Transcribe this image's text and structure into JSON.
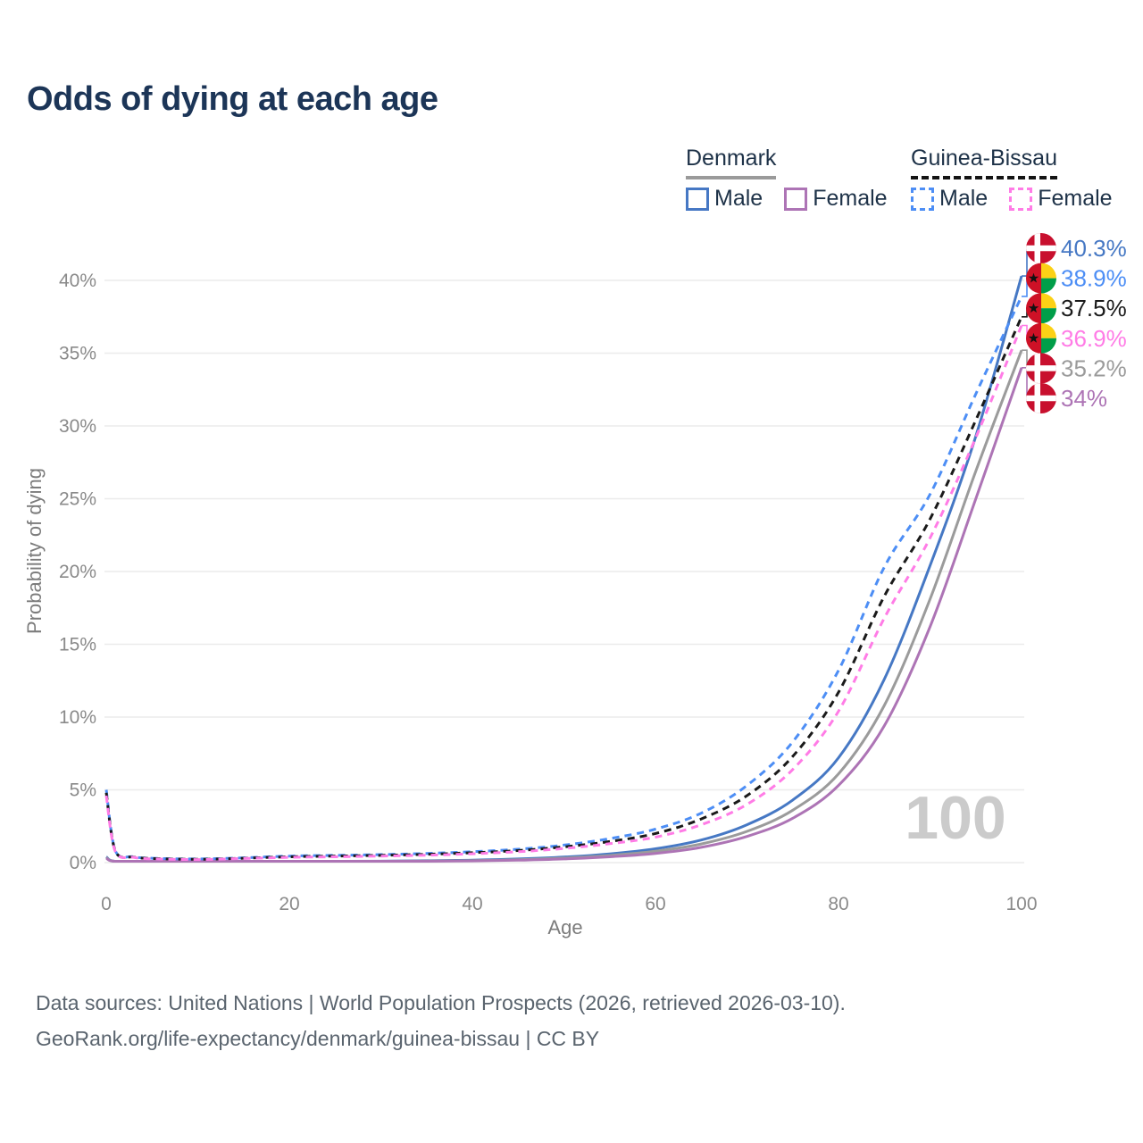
{
  "title": "Odds of dying at each age",
  "legend": {
    "groups": [
      {
        "name": "Denmark",
        "line_style": "solid",
        "underline_color": "#9a9a9a",
        "items": [
          {
            "label": "Male",
            "color": "#4678c4"
          },
          {
            "label": "Female",
            "color": "#ad74b5"
          }
        ]
      },
      {
        "name": "Guinea-Bissau",
        "line_style": "dashed",
        "underline_color": "#141414",
        "items": [
          {
            "label": "Male",
            "color": "#4d8ef5"
          },
          {
            "label": "Female",
            "color": "#ff7ce6"
          }
        ]
      }
    ]
  },
  "chart_data": {
    "type": "line",
    "title": "Odds of dying at each age",
    "xlabel": "Age",
    "ylabel": "Probability of dying",
    "x_ticks": [
      0,
      20,
      40,
      60,
      80,
      100
    ],
    "y_tick_labels": [
      "0%",
      "5%",
      "10%",
      "15%",
      "20%",
      "25%",
      "30%",
      "35%",
      "40%"
    ],
    "xlim": [
      0,
      100
    ],
    "ylim": [
      0,
      43
    ],
    "grid": "horizontal",
    "legend_position": "top-right",
    "watermark": "100",
    "series": [
      {
        "id": "denmark-male",
        "name": "Denmark Male",
        "color": "#4678c4",
        "dashed": false,
        "flag": "denmark",
        "end_label": "40.3%",
        "end_value": 40.3,
        "points": [
          [
            0,
            0.4
          ],
          [
            1,
            0.04
          ],
          [
            5,
            0.01
          ],
          [
            10,
            0.012
          ],
          [
            15,
            0.03
          ],
          [
            20,
            0.06
          ],
          [
            25,
            0.08
          ],
          [
            30,
            0.1
          ],
          [
            35,
            0.13
          ],
          [
            40,
            0.17
          ],
          [
            45,
            0.25
          ],
          [
            50,
            0.38
          ],
          [
            55,
            0.6
          ],
          [
            60,
            0.95
          ],
          [
            65,
            1.55
          ],
          [
            70,
            2.6
          ],
          [
            75,
            4.3
          ],
          [
            80,
            7.2
          ],
          [
            85,
            12.6
          ],
          [
            90,
            20.4
          ],
          [
            95,
            29.3
          ],
          [
            100,
            40.3
          ]
        ]
      },
      {
        "id": "denmark-both",
        "name": "Denmark",
        "color": "#9b9b9b",
        "dashed": false,
        "flag": "denmark",
        "end_label": "35.2%",
        "end_value": 35.2,
        "points": [
          [
            0,
            0.35
          ],
          [
            1,
            0.035
          ],
          [
            5,
            0.01
          ],
          [
            10,
            0.01
          ],
          [
            15,
            0.025
          ],
          [
            20,
            0.05
          ],
          [
            25,
            0.065
          ],
          [
            30,
            0.08
          ],
          [
            35,
            0.105
          ],
          [
            40,
            0.14
          ],
          [
            45,
            0.2
          ],
          [
            50,
            0.31
          ],
          [
            55,
            0.49
          ],
          [
            60,
            0.78
          ],
          [
            65,
            1.28
          ],
          [
            70,
            2.15
          ],
          [
            75,
            3.6
          ],
          [
            80,
            6.1
          ],
          [
            85,
            10.8
          ],
          [
            90,
            18.1
          ],
          [
            95,
            26.9
          ],
          [
            100,
            35.2
          ]
        ]
      },
      {
        "id": "denmark-female",
        "name": "Denmark Female",
        "color": "#ad74b5",
        "dashed": false,
        "flag": "denmark",
        "end_label": "34%",
        "end_value": 34.0,
        "points": [
          [
            0,
            0.3
          ],
          [
            1,
            0.03
          ],
          [
            5,
            0.01
          ],
          [
            10,
            0.01
          ],
          [
            15,
            0.02
          ],
          [
            20,
            0.04
          ],
          [
            25,
            0.05
          ],
          [
            30,
            0.065
          ],
          [
            35,
            0.085
          ],
          [
            40,
            0.115
          ],
          [
            45,
            0.165
          ],
          [
            50,
            0.25
          ],
          [
            55,
            0.4
          ],
          [
            60,
            0.63
          ],
          [
            65,
            1.05
          ],
          [
            70,
            1.8
          ],
          [
            75,
            3.05
          ],
          [
            80,
            5.3
          ],
          [
            85,
            9.4
          ],
          [
            90,
            16.2
          ],
          [
            95,
            25.0
          ],
          [
            100,
            34.0
          ]
        ]
      },
      {
        "id": "guinea-bissau-male",
        "name": "Guinea-Bissau Male",
        "color": "#4d8ef5",
        "dashed": true,
        "flag": "guinea-bissau",
        "end_label": "38.9%",
        "end_value": 38.9,
        "points": [
          [
            0,
            5.0
          ],
          [
            1,
            0.8
          ],
          [
            3,
            0.4
          ],
          [
            5,
            0.3
          ],
          [
            10,
            0.25
          ],
          [
            15,
            0.33
          ],
          [
            20,
            0.45
          ],
          [
            25,
            0.5
          ],
          [
            30,
            0.55
          ],
          [
            35,
            0.63
          ],
          [
            40,
            0.75
          ],
          [
            45,
            0.92
          ],
          [
            50,
            1.2
          ],
          [
            55,
            1.65
          ],
          [
            60,
            2.3
          ],
          [
            65,
            3.4
          ],
          [
            70,
            5.3
          ],
          [
            75,
            8.3
          ],
          [
            80,
            13.2
          ],
          [
            85,
            20.3
          ],
          [
            90,
            25.3
          ],
          [
            95,
            32.2
          ],
          [
            100,
            38.9
          ]
        ]
      },
      {
        "id": "guinea-bissau-both",
        "name": "Guinea-Bissau",
        "color": "#1a1a1a",
        "dashed": true,
        "flag": "guinea-bissau",
        "end_label": "37.5%",
        "end_value": 37.5,
        "points": [
          [
            0,
            4.8
          ],
          [
            1,
            0.77
          ],
          [
            3,
            0.38
          ],
          [
            5,
            0.28
          ],
          [
            10,
            0.23
          ],
          [
            15,
            0.3
          ],
          [
            20,
            0.4
          ],
          [
            25,
            0.45
          ],
          [
            30,
            0.5
          ],
          [
            35,
            0.57
          ],
          [
            40,
            0.68
          ],
          [
            45,
            0.83
          ],
          [
            50,
            1.08
          ],
          [
            55,
            1.45
          ],
          [
            60,
            2.0
          ],
          [
            65,
            3.0
          ],
          [
            70,
            4.6
          ],
          [
            75,
            7.3
          ],
          [
            80,
            11.7
          ],
          [
            85,
            18.3
          ],
          [
            90,
            23.6
          ],
          [
            95,
            30.4
          ],
          [
            100,
            37.5
          ]
        ]
      },
      {
        "id": "guinea-bissau-female",
        "name": "Guinea-Bissau Female",
        "color": "#ff7ce6",
        "dashed": true,
        "flag": "guinea-bissau",
        "end_label": "36.9%",
        "end_value": 36.9,
        "points": [
          [
            0,
            4.6
          ],
          [
            1,
            0.74
          ],
          [
            3,
            0.36
          ],
          [
            5,
            0.26
          ],
          [
            10,
            0.21
          ],
          [
            15,
            0.28
          ],
          [
            20,
            0.36
          ],
          [
            25,
            0.4
          ],
          [
            30,
            0.45
          ],
          [
            35,
            0.51
          ],
          [
            40,
            0.61
          ],
          [
            45,
            0.75
          ],
          [
            50,
            0.97
          ],
          [
            55,
            1.3
          ],
          [
            60,
            1.75
          ],
          [
            65,
            2.6
          ],
          [
            70,
            4.0
          ],
          [
            75,
            6.4
          ],
          [
            80,
            10.4
          ],
          [
            85,
            16.8
          ],
          [
            90,
            22.3
          ],
          [
            95,
            29.2
          ],
          [
            100,
            36.9
          ]
        ]
      }
    ],
    "flag_colors": {
      "denmark_red": "#c8102e",
      "gb_red": "#ce1126",
      "gb_yellow": "#fcd116",
      "gb_green": "#009e49",
      "gb_star": "#111111"
    }
  },
  "footer": {
    "line1": "Data sources: United Nations | World Population Prospects (2026, retrieved 2026-03-10).",
    "line2": "GeoRank.org/life-expectancy/denmark/guinea-bissau | CC BY"
  }
}
